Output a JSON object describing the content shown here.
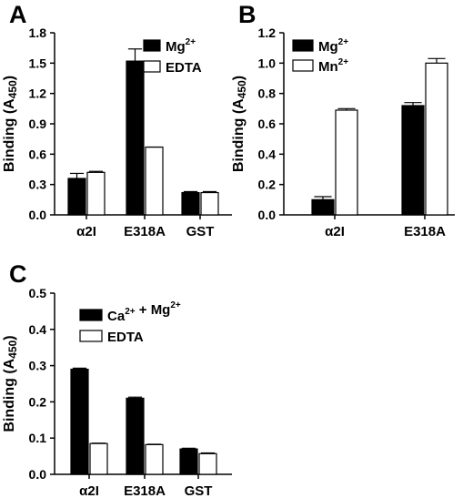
{
  "chart_data": [
    {
      "panel": "A",
      "type": "bar",
      "categories": [
        "α2I",
        "E318A",
        "GST"
      ],
      "ylabel": "Binding",
      "ylabel_sub": "A450",
      "ylim": [
        0,
        1.8
      ],
      "yticks": [
        "0.0",
        "0.3",
        "0.6",
        "0.9",
        "1.2",
        "1.5",
        "1.8"
      ],
      "legend_position": "top-right",
      "series": [
        {
          "name": "Mg",
          "name_sup": "2+",
          "color": "#000000",
          "values": [
            0.36,
            1.52,
            0.22
          ],
          "errors": [
            0.05,
            0.12,
            0.01
          ]
        },
        {
          "name": "EDTA",
          "name_sup": "",
          "color": "#ffffff",
          "values": [
            0.42,
            0.67,
            0.22
          ],
          "errors": [
            0.01,
            0.0,
            0.01
          ]
        }
      ]
    },
    {
      "panel": "B",
      "type": "bar",
      "categories": [
        "α2I",
        "E318A"
      ],
      "ylabel": "Binding",
      "ylabel_sub": "A450",
      "ylim": [
        0,
        1.2
      ],
      "yticks": [
        "0.0",
        "0.2",
        "0.4",
        "0.6",
        "0.8",
        "1.0",
        "1.2"
      ],
      "legend_position": "top-left",
      "series": [
        {
          "name": "Mg",
          "name_sup": "2+",
          "color": "#000000",
          "values": [
            0.1,
            0.72
          ],
          "errors": [
            0.02,
            0.02
          ]
        },
        {
          "name": "Mn",
          "name_sup": "2+",
          "color": "#ffffff",
          "values": [
            0.69,
            1.0
          ],
          "errors": [
            0.01,
            0.03
          ]
        }
      ]
    },
    {
      "panel": "C",
      "type": "bar",
      "categories": [
        "α2I",
        "E318A",
        "GST"
      ],
      "ylabel": "Binding",
      "ylabel_sub": "A450",
      "ylim": [
        0,
        0.5
      ],
      "yticks": [
        "0.0",
        "0.1",
        "0.2",
        "0.3",
        "0.4",
        "0.5"
      ],
      "legend_position": "top-left",
      "series": [
        {
          "name": "Ca",
          "name_sup": "2+",
          "name_tail": " + Mg",
          "name_tail_sup": "2+",
          "color": "#000000",
          "values": [
            0.29,
            0.21,
            0.07
          ],
          "errors": [
            0.003,
            0.003,
            0.002
          ]
        },
        {
          "name": "EDTA",
          "name_sup": "",
          "color": "#ffffff",
          "values": [
            0.085,
            0.082,
            0.057
          ],
          "errors": [
            0.001,
            0.001,
            0.002
          ]
        }
      ]
    }
  ]
}
